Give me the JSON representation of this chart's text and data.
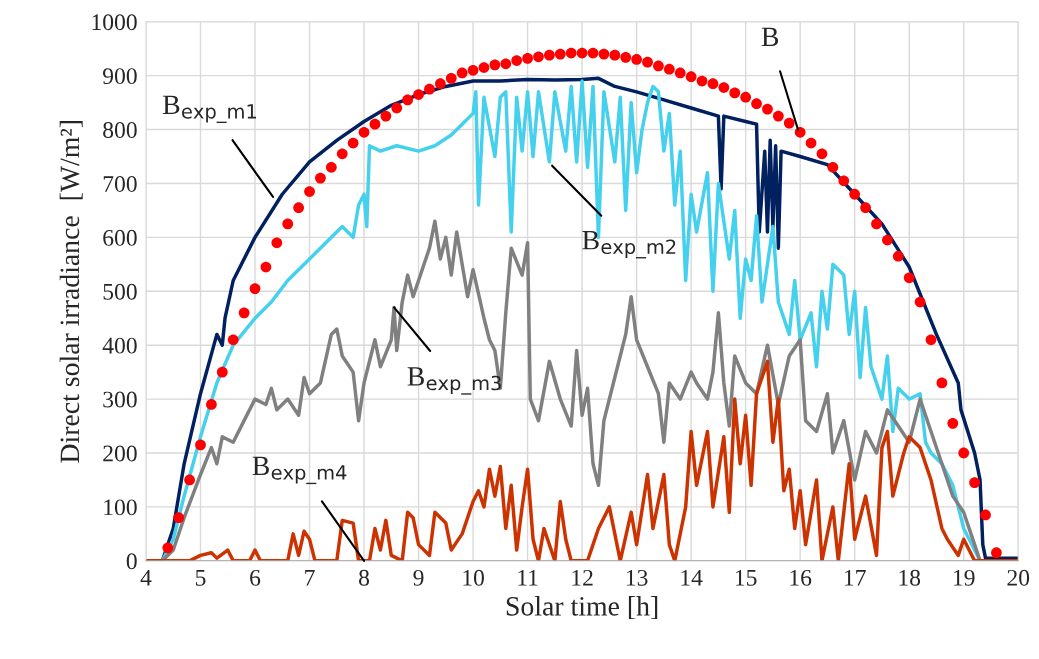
{
  "chart_data": {
    "type": "line",
    "xlabel": "Solar time [h]",
    "ylabel": "Direct solar irradiance  [W/m²]",
    "xlim": [
      4,
      20
    ],
    "xticks": [
      4,
      5,
      6,
      7,
      8,
      9,
      10,
      11,
      12,
      13,
      14,
      15,
      16,
      17,
      18,
      19,
      20
    ],
    "ylim": [
      0,
      1000
    ],
    "yticks": [
      0,
      100,
      200,
      300,
      400,
      500,
      600,
      700,
      800,
      900,
      1000
    ],
    "grid": true,
    "legend": false,
    "series": [
      {
        "color": "#002060",
        "x": [
          4.0,
          4.3,
          4.5,
          4.7,
          5.0,
          5.3,
          5.4,
          5.45,
          5.6,
          6.0,
          6.5,
          7.0,
          7.5,
          8.0,
          8.5,
          9.0,
          9.5,
          10.0,
          10.5,
          11.0,
          11.5,
          12.0,
          12.3,
          12.6,
          13.0,
          13.5,
          14.0,
          14.5,
          14.55,
          14.6,
          15.0,
          15.2,
          15.25,
          15.35,
          15.4,
          15.45,
          15.5,
          15.55,
          15.6,
          15.65,
          16.0,
          16.5,
          17.0,
          17.5,
          18.0,
          18.5,
          18.9,
          18.95,
          19.2,
          19.3,
          19.35,
          19.4,
          20.0
        ],
        "values": [
          0,
          0,
          60,
          180,
          310,
          420,
          400,
          450,
          520,
          600,
          680,
          740,
          780,
          815,
          845,
          865,
          880,
          890,
          890,
          893,
          892,
          893,
          895,
          880,
          870,
          855,
          840,
          825,
          690,
          825,
          815,
          810,
          610,
          760,
          610,
          780,
          620,
          770,
          580,
          760,
          750,
          735,
          680,
          625,
          545,
          420,
          330,
          280,
          200,
          150,
          30,
          5,
          5
        ]
      },
      {
        "color": "#45d0ee",
        "x": [
          4.0,
          4.3,
          4.5,
          4.7,
          5.0,
          5.3,
          5.6,
          6.0,
          6.3,
          6.6,
          7.0,
          7.3,
          7.6,
          7.8,
          7.9,
          8.0,
          8.05,
          8.1,
          8.3,
          8.6,
          9.0,
          9.3,
          9.6,
          9.8,
          10.0,
          10.05,
          10.1,
          10.2,
          10.4,
          10.5,
          10.6,
          10.7,
          10.8,
          10.9,
          11.0,
          11.1,
          11.2,
          11.4,
          11.5,
          11.7,
          11.8,
          11.9,
          12.0,
          12.1,
          12.2,
          12.3,
          12.4,
          12.6,
          12.7,
          12.8,
          12.9,
          13.0,
          13.1,
          13.2,
          13.3,
          13.4,
          13.5,
          13.6,
          13.7,
          13.8,
          13.9,
          14.0,
          14.1,
          14.3,
          14.4,
          14.5,
          14.7,
          14.8,
          14.9,
          15.0,
          15.1,
          15.2,
          15.3,
          15.5,
          15.6,
          15.8,
          15.9,
          16.0,
          16.2,
          16.3,
          16.4,
          16.5,
          16.6,
          16.8,
          16.9,
          17.0,
          17.1,
          17.2,
          17.3,
          17.5,
          17.6,
          17.7,
          17.8,
          18.0,
          18.2,
          18.3,
          18.4,
          18.6,
          18.8,
          19.0,
          19.2,
          19.3,
          20.0
        ],
        "values": [
          0,
          0,
          40,
          120,
          230,
          330,
          400,
          450,
          480,
          520,
          560,
          590,
          620,
          600,
          660,
          680,
          620,
          770,
          760,
          770,
          760,
          770,
          790,
          810,
          830,
          870,
          660,
          860,
          750,
          860,
          870,
          610,
          860,
          760,
          870,
          750,
          870,
          740,
          870,
          760,
          880,
          740,
          890,
          730,
          880,
          600,
          870,
          740,
          860,
          650,
          850,
          720,
          800,
          850,
          880,
          870,
          760,
          830,
          660,
          760,
          520,
          680,
          610,
          720,
          500,
          700,
          560,
          650,
          450,
          560,
          520,
          640,
          480,
          620,
          480,
          420,
          520,
          410,
          460,
          360,
          500,
          430,
          550,
          530,
          420,
          500,
          340,
          470,
          360,
          300,
          380,
          240,
          320,
          300,
          310,
          220,
          200,
          180,
          140,
          60,
          20,
          0,
          0
        ]
      },
      {
        "color": "#808080",
        "x": [
          4.0,
          4.3,
          4.5,
          4.7,
          5.0,
          5.2,
          5.3,
          5.4,
          5.6,
          5.8,
          6.0,
          6.2,
          6.3,
          6.4,
          6.6,
          6.8,
          6.9,
          7.0,
          7.2,
          7.4,
          7.5,
          7.6,
          7.8,
          7.9,
          8.0,
          8.2,
          8.3,
          8.5,
          8.55,
          8.6,
          8.7,
          8.8,
          8.9,
          9.0,
          9.2,
          9.3,
          9.4,
          9.5,
          9.6,
          9.7,
          9.9,
          10.0,
          10.2,
          10.3,
          10.4,
          10.5,
          10.6,
          10.7,
          10.9,
          11.0,
          11.05,
          11.2,
          11.4,
          11.6,
          11.8,
          11.9,
          12.0,
          12.1,
          12.2,
          12.3,
          12.4,
          12.6,
          12.8,
          12.9,
          13.0,
          13.2,
          13.4,
          13.5,
          13.6,
          13.8,
          14.0,
          14.1,
          14.3,
          14.4,
          14.5,
          14.6,
          14.7,
          14.8,
          15.0,
          15.2,
          15.4,
          15.6,
          15.8,
          16.0,
          16.1,
          16.3,
          16.5,
          16.6,
          16.8,
          17.0,
          17.2,
          17.4,
          17.6,
          17.8,
          18.0,
          18.2,
          18.4,
          18.6,
          18.8,
          19.0,
          19.2,
          19.3,
          20.0
        ],
        "values": [
          0,
          0,
          20,
          80,
          160,
          210,
          180,
          230,
          220,
          260,
          300,
          290,
          320,
          280,
          300,
          270,
          340,
          310,
          330,
          420,
          430,
          380,
          350,
          260,
          330,
          410,
          360,
          410,
          470,
          390,
          480,
          530,
          490,
          520,
          580,
          630,
          560,
          600,
          530,
          610,
          490,
          540,
          450,
          410,
          390,
          320,
          460,
          580,
          530,
          590,
          300,
          260,
          370,
          300,
          250,
          390,
          270,
          320,
          180,
          140,
          260,
          340,
          420,
          490,
          410,
          360,
          310,
          220,
          330,
          300,
          350,
          330,
          300,
          350,
          460,
          330,
          250,
          380,
          330,
          310,
          400,
          290,
          380,
          410,
          260,
          240,
          310,
          200,
          260,
          150,
          240,
          200,
          280,
          250,
          220,
          300,
          240,
          180,
          120,
          90,
          30,
          0,
          0
        ]
      },
      {
        "color": "#cc3300",
        "x": [
          4.0,
          4.8,
          5.0,
          5.2,
          5.3,
          5.5,
          5.6,
          5.9,
          6.0,
          6.1,
          6.6,
          6.7,
          6.8,
          6.9,
          7.0,
          7.1,
          7.5,
          7.6,
          7.8,
          7.9,
          8.1,
          8.2,
          8.3,
          8.4,
          8.5,
          8.7,
          8.8,
          8.9,
          9.0,
          9.2,
          9.3,
          9.5,
          9.6,
          9.8,
          10.0,
          10.1,
          10.2,
          10.3,
          10.4,
          10.5,
          10.6,
          10.7,
          10.8,
          10.9,
          11.0,
          11.1,
          11.2,
          11.3,
          11.5,
          11.6,
          11.7,
          11.8,
          12.1,
          12.3,
          12.5,
          12.7,
          12.9,
          13.0,
          13.2,
          13.3,
          13.5,
          13.6,
          13.7,
          13.9,
          14.0,
          14.1,
          14.3,
          14.4,
          14.6,
          14.7,
          14.8,
          14.9,
          15.0,
          15.1,
          15.2,
          15.4,
          15.5,
          15.6,
          15.7,
          15.8,
          15.9,
          16.0,
          16.1,
          16.3,
          16.4,
          16.6,
          16.7,
          16.9,
          17.0,
          17.2,
          17.4,
          17.5,
          17.6,
          17.7,
          17.9,
          18.0,
          18.2,
          18.4,
          18.6,
          18.7,
          18.9,
          19.0,
          19.2,
          20.0
        ],
        "values": [
          0,
          0,
          10,
          15,
          5,
          20,
          0,
          0,
          20,
          0,
          0,
          50,
          10,
          55,
          40,
          0,
          0,
          75,
          70,
          0,
          0,
          60,
          20,
          75,
          10,
          0,
          90,
          80,
          30,
          10,
          90,
          70,
          20,
          50,
          110,
          130,
          100,
          170,
          120,
          175,
          60,
          140,
          20,
          100,
          170,
          40,
          0,
          60,
          0,
          110,
          40,
          0,
          0,
          60,
          100,
          0,
          90,
          30,
          160,
          60,
          160,
          30,
          0,
          100,
          240,
          140,
          240,
          100,
          230,
          90,
          300,
          180,
          270,
          140,
          310,
          370,
          220,
          300,
          130,
          170,
          60,
          130,
          30,
          150,
          0,
          100,
          0,
          180,
          40,
          120,
          10,
          210,
          240,
          120,
          200,
          230,
          210,
          150,
          60,
          40,
          10,
          40,
          0,
          0
        ]
      },
      {
        "type": "scatter",
        "color": "#ff0000",
        "marker": "circle",
        "x": [
          4.4,
          4.6,
          4.8,
          5.0,
          5.2,
          5.4,
          5.6,
          5.8,
          6.0,
          6.2,
          6.4,
          6.6,
          6.8,
          7.0,
          7.2,
          7.4,
          7.6,
          7.8,
          8.0,
          8.2,
          8.4,
          8.6,
          8.8,
          9.0,
          9.2,
          9.4,
          9.6,
          9.8,
          10.0,
          10.2,
          10.4,
          10.6,
          10.8,
          11.0,
          11.2,
          11.4,
          11.6,
          11.8,
          12.0,
          12.2,
          12.4,
          12.6,
          12.8,
          13.0,
          13.2,
          13.4,
          13.6,
          13.8,
          14.0,
          14.2,
          14.4,
          14.6,
          14.8,
          15.0,
          15.2,
          15.4,
          15.6,
          15.8,
          16.0,
          16.2,
          16.4,
          16.6,
          16.8,
          17.0,
          17.2,
          17.4,
          17.6,
          17.8,
          18.0,
          18.2,
          18.4,
          18.6,
          18.8,
          19.0,
          19.2,
          19.4,
          19.6
        ],
        "values": [
          24,
          80,
          150,
          215,
          290,
          350,
          410,
          460,
          505,
          545,
          590,
          625,
          655,
          685,
          710,
          730,
          755,
          775,
          795,
          810,
          825,
          840,
          855,
          865,
          875,
          885,
          895,
          905,
          910,
          915,
          920,
          922,
          928,
          932,
          935,
          938,
          940,
          942,
          942,
          942,
          940,
          938,
          934,
          930,
          925,
          918,
          912,
          905,
          898,
          890,
          885,
          878,
          868,
          860,
          848,
          838,
          825,
          812,
          795,
          775,
          755,
          730,
          705,
          680,
          655,
          625,
          595,
          565,
          525,
          480,
          410,
          330,
          255,
          200,
          145,
          85,
          15
        ]
      }
    ],
    "annotations": [
      {
        "text": "B",
        "x": 15.96,
        "y": 800
      },
      {
        "text": "B$_{exp_m1}$",
        "x": 6.33,
        "y": 675
      },
      {
        "text": "B$_{exp_m2}$",
        "x": 11.45,
        "y": 733
      },
      {
        "text": "B$_{exp_m3}$",
        "x": 8.55,
        "y": 470
      },
      {
        "text": "B$_{exp_m4}$",
        "x": 8.0,
        "y": 0
      }
    ]
  }
}
